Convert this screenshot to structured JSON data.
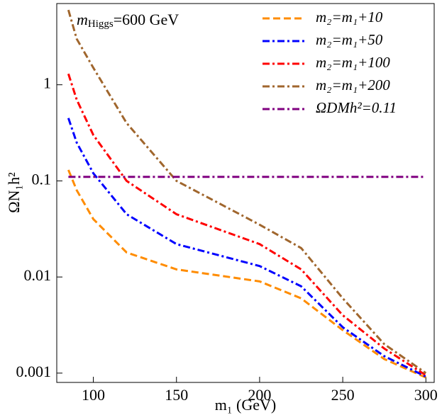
{
  "chart_data": {
    "type": "line",
    "annotation": {
      "symbol": "m",
      "subscript": "Higgs",
      "text": "=600 GeV"
    },
    "x_label": "m₁ (GeV)",
    "y_label": "ΩN₁h²",
    "x": [
      85,
      90,
      100,
      120,
      150,
      200,
      225,
      250,
      275,
      300
    ],
    "series": [
      {
        "name": "m₂=m₁+10",
        "color": "#ff8c00",
        "style": "dashed",
        "values": [
          0.13,
          0.08,
          0.04,
          0.018,
          0.012,
          0.009,
          0.006,
          0.0028,
          0.0014,
          0.0009
        ]
      },
      {
        "name": "m₂=m₁+50",
        "color": "#0000ff",
        "style": "dashdot",
        "values": [
          0.45,
          0.25,
          0.12,
          0.045,
          0.022,
          0.013,
          0.008,
          0.003,
          0.0015,
          0.00092
        ]
      },
      {
        "name": "m₂=m₁+100",
        "color": "#ff0000",
        "style": "dashdot",
        "values": [
          1.3,
          0.7,
          0.3,
          0.1,
          0.045,
          0.022,
          0.012,
          0.004,
          0.0018,
          0.00095
        ]
      },
      {
        "name": "m₂=m₁+200",
        "color": "#a0662d",
        "style": "dashdot",
        "values": [
          6,
          3,
          1.5,
          0.4,
          0.1,
          0.035,
          0.02,
          0.006,
          0.002,
          0.001
        ]
      },
      {
        "name": "ΩDMh²=0.11",
        "color": "#800080",
        "style": "dashdot",
        "values": [
          0.11,
          0.11,
          0.11,
          0.11,
          0.11,
          0.11,
          0.11,
          0.11,
          0.11,
          0.11
        ]
      }
    ],
    "xlim": [
      78,
      305
    ],
    "ylim": [
      0.0008,
      7
    ],
    "log_y": true,
    "xticks": [
      100,
      150,
      200,
      250,
      300
    ],
    "yticks": [
      1,
      0.1,
      0.01,
      0.001
    ],
    "legend": "top-right"
  }
}
